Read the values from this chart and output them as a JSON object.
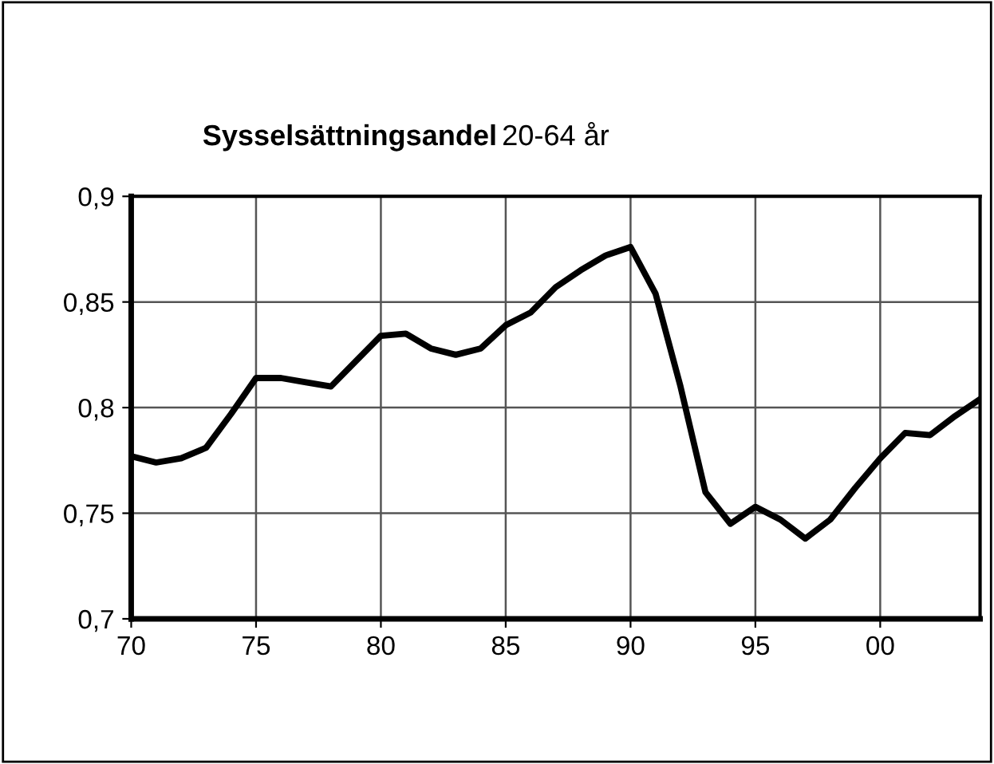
{
  "chart_data": {
    "type": "line",
    "title": "Sysselsättningsandel",
    "subtitle": "20-64 år",
    "x": [
      1970,
      1971,
      1972,
      1973,
      1974,
      1975,
      1976,
      1977,
      1978,
      1979,
      1980,
      1981,
      1982,
      1983,
      1984,
      1985,
      1986,
      1987,
      1988,
      1989,
      1990,
      1991,
      1992,
      1993,
      1994,
      1995,
      1996,
      1997,
      1998,
      1999,
      2000,
      2001,
      2002,
      2003,
      2004
    ],
    "series": [
      {
        "color": "#000000",
        "values": [
          0.777,
          0.774,
          0.776,
          0.781,
          0.797,
          0.814,
          0.814,
          0.812,
          0.81,
          0.822,
          0.834,
          0.835,
          0.828,
          0.825,
          0.828,
          0.839,
          0.845,
          0.857,
          0.865,
          0.872,
          0.876,
          0.854,
          0.81,
          0.76,
          0.745,
          0.753,
          0.747,
          0.738,
          0.747,
          0.762,
          0.776,
          0.788,
          0.787,
          0.796,
          0.804
        ]
      }
    ],
    "xlim": [
      1970,
      2004
    ],
    "xticks": [
      {
        "value": 1970,
        "label": "70"
      },
      {
        "value": 1975,
        "label": "75"
      },
      {
        "value": 1980,
        "label": "80"
      },
      {
        "value": 1985,
        "label": "85"
      },
      {
        "value": 1990,
        "label": "90"
      },
      {
        "value": 1995,
        "label": "95"
      },
      {
        "value": 2000,
        "label": "00"
      }
    ],
    "ylim": [
      0.7,
      0.9
    ],
    "yticks": [
      {
        "value": 0.7,
        "label": "0,7"
      },
      {
        "value": 0.75,
        "label": "0,75"
      },
      {
        "value": 0.8,
        "label": "0,8"
      },
      {
        "value": 0.85,
        "label": "0,85"
      },
      {
        "value": 0.9,
        "label": "0,9"
      }
    ],
    "grid": true,
    "legend": false,
    "marker": "none",
    "line_style": "solid"
  }
}
